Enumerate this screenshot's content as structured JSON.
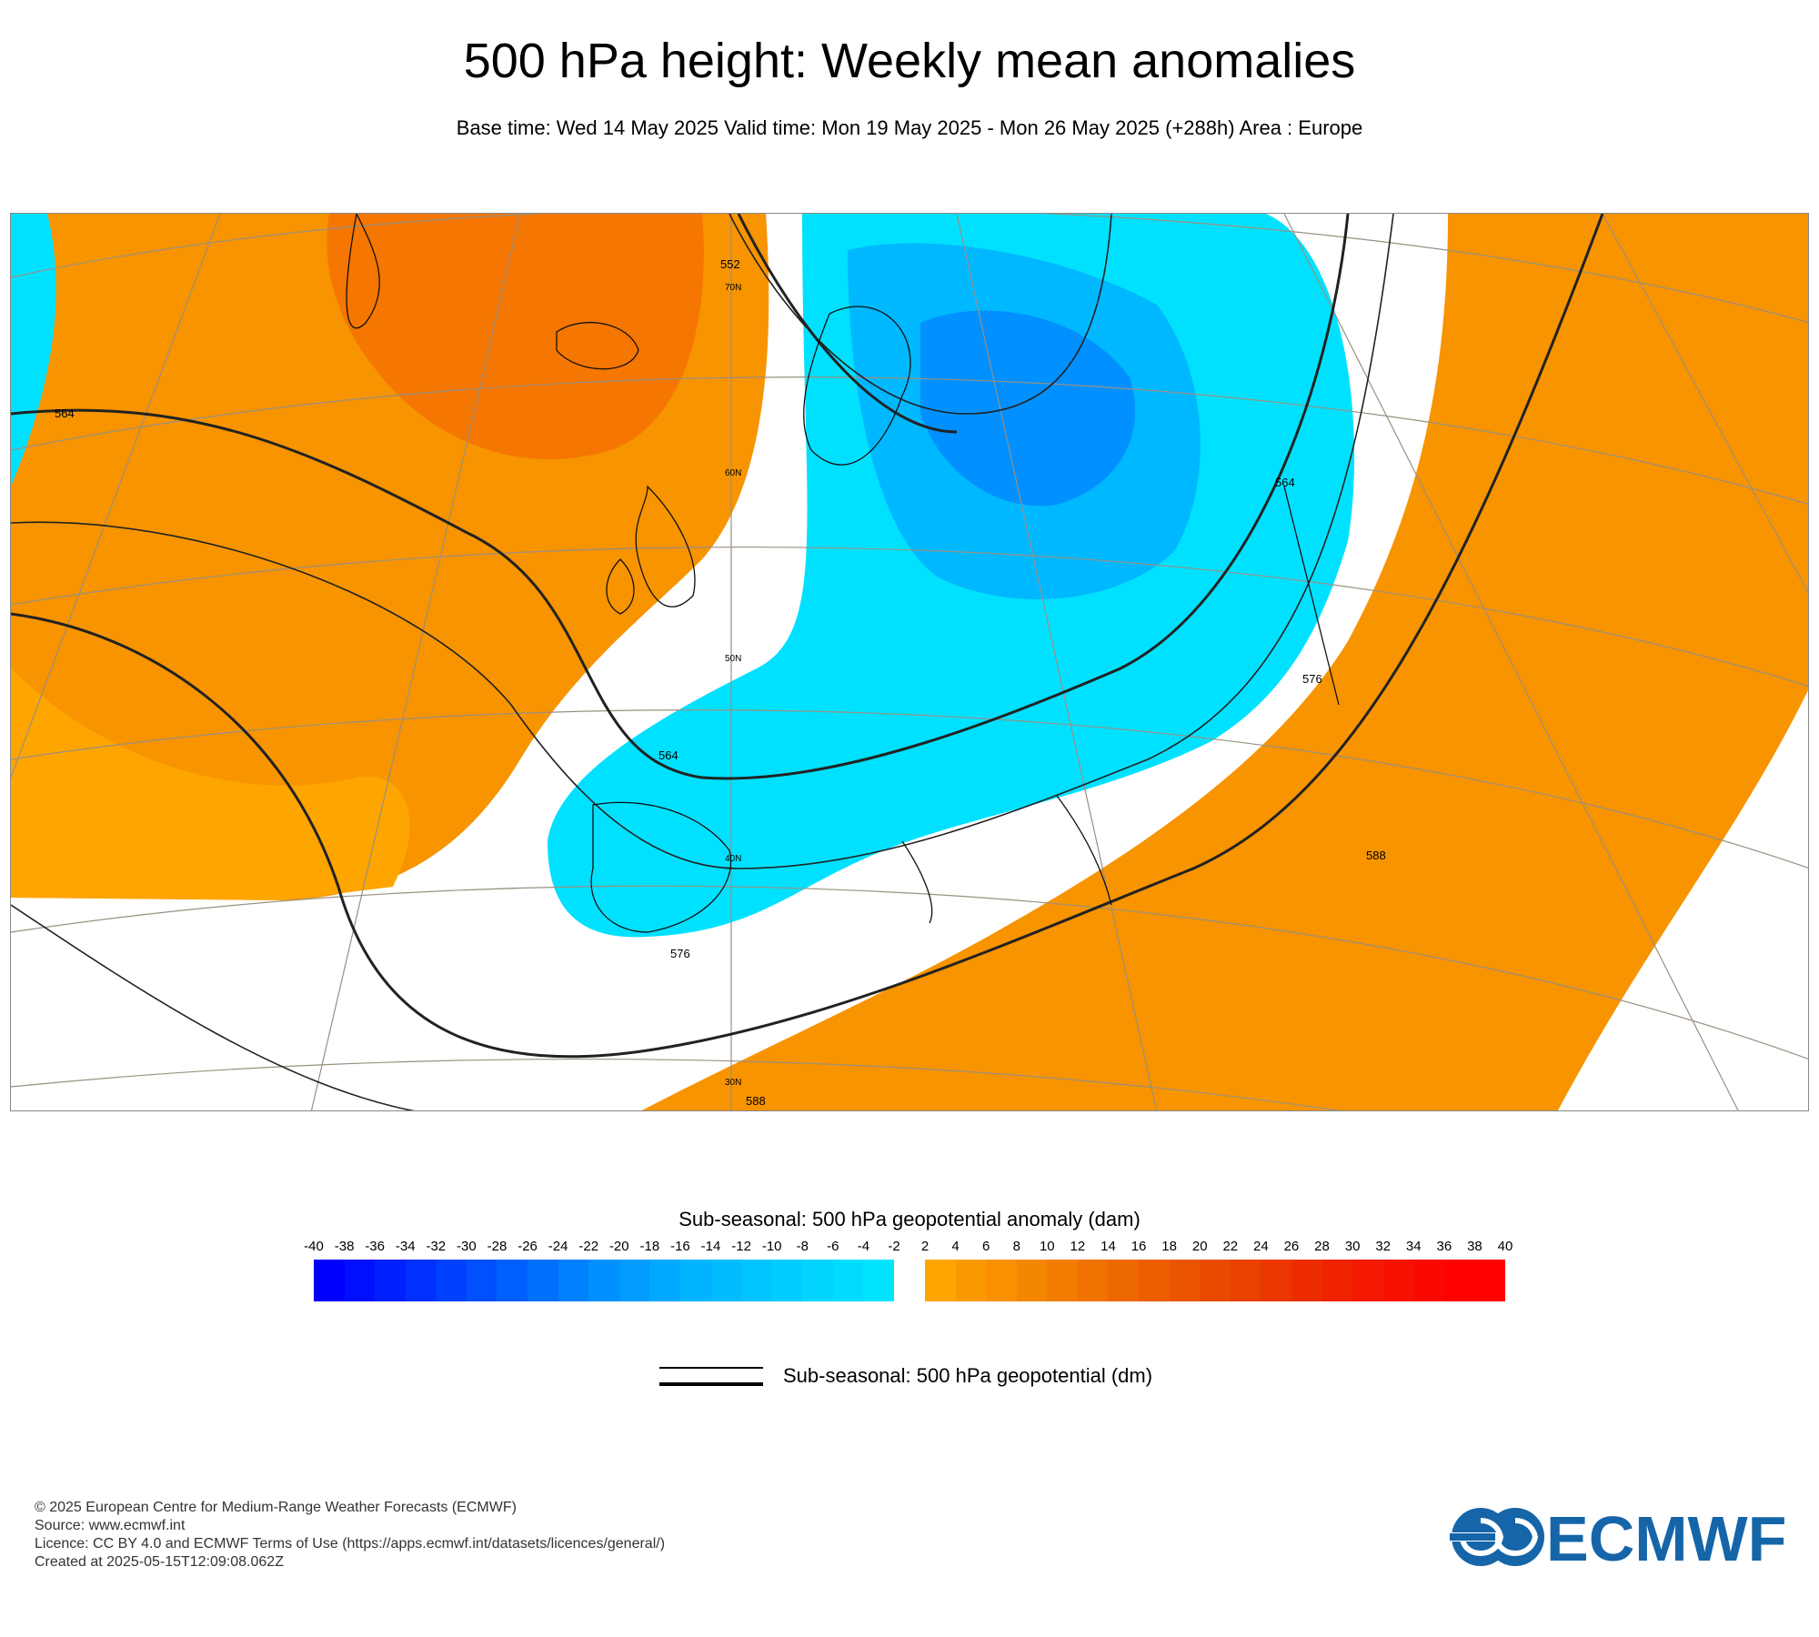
{
  "title": "500 hPa height: Weekly mean anomalies",
  "subtitle": "Base time: Wed 14 May 2025 Valid time: Mon 19 May 2025 - Mon 26 May 2025 (+288h) Area : Europe",
  "map": {
    "contour_labels": [
      "552",
      "564",
      "564",
      "564",
      "576",
      "576",
      "588",
      "588"
    ],
    "latitude_labels": [
      "70N",
      "60N",
      "50N",
      "40N",
      "30N"
    ],
    "anomaly_colors": {
      "strong_positive": "#f57600",
      "positive": "#f79400",
      "weak_positive": "#ffa500",
      "weak_negative": "#00e1ff",
      "negative": "#00b8ff",
      "strong_negative": "#0090ff",
      "neutral": "#ffffff"
    }
  },
  "legend": {
    "title": "Sub-seasonal: 500 hPa geopotential anomaly (dam)",
    "tick_labels": [
      "-40",
      "-38",
      "-36",
      "-34",
      "-32",
      "-30",
      "-28",
      "-26",
      "-24",
      "-22",
      "-20",
      "-18",
      "-16",
      "-14",
      "-12",
      "-10",
      "-8",
      "-6",
      "-4",
      "-2",
      "2",
      "4",
      "6",
      "8",
      "10",
      "12",
      "14",
      "16",
      "18",
      "20",
      "22",
      "24",
      "26",
      "28",
      "30",
      "32",
      "34",
      "36",
      "38",
      "40"
    ],
    "negative_colors": [
      "#0000ff",
      "#0010ff",
      "#0020ff",
      "#0030ff",
      "#0040ff",
      "#0050ff",
      "#0060ff",
      "#0070ff",
      "#0080ff",
      "#0090ff",
      "#009cff",
      "#00a8ff",
      "#00b4ff",
      "#00bcff",
      "#00c4ff",
      "#00ccff",
      "#00d4ff",
      "#00dcff",
      "#00e4ff"
    ],
    "positive_colors": [
      "#ffa500",
      "#fb9a00",
      "#f89000",
      "#f58600",
      "#f27c00",
      "#f07200",
      "#ee6800",
      "#ec5e00",
      "#eb5400",
      "#ea4a00",
      "#ea4000",
      "#eb3600",
      "#ed2c00",
      "#f02200",
      "#f41800",
      "#f81000",
      "#fb0800",
      "#ff0000",
      "#ff0000"
    ],
    "line_label": "Sub-seasonal: 500 hPa geopotential (dm)"
  },
  "footer": {
    "copyright": "© 2025 European Centre for Medium-Range Weather Forecasts (ECMWF)",
    "source": "Source: www.ecmwf.int",
    "licence": "Licence: CC BY 4.0 and ECMWF Terms of Use (https://apps.ecmwf.int/datasets/licences/general/)",
    "created": "Created at 2025-05-15T12:09:08.062Z"
  },
  "logo_text": "ECMWF"
}
